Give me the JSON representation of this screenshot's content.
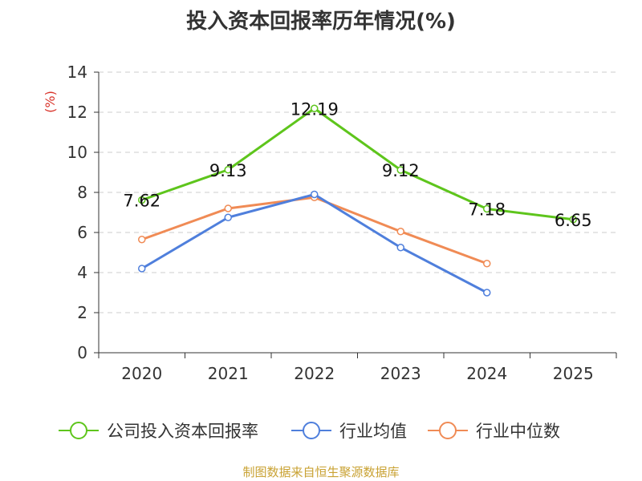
{
  "chart_data": {
    "type": "line",
    "title": "投入资本回报率历年情况(%)",
    "ylabel": "(%)",
    "xlabel": "",
    "categories": [
      "2020",
      "2021",
      "2022",
      "2023",
      "2024",
      "2025"
    ],
    "ylim": [
      0,
      14
    ],
    "yticks": [
      0,
      2,
      4,
      6,
      8,
      10,
      12,
      14
    ],
    "grid": true,
    "legend_position": "bottom",
    "series": [
      {
        "name": "公司投入资本回报率",
        "color": "#5ec51c",
        "values": [
          7.62,
          9.13,
          12.19,
          9.12,
          7.18,
          6.65
        ],
        "labels": [
          "7.62",
          "9.13",
          "12.19",
          "9.12",
          "7.18",
          "6.65"
        ]
      },
      {
        "name": "行业均值",
        "color": "#4f7fdc",
        "values": [
          4.2,
          6.75,
          7.9,
          5.25,
          3.0,
          null
        ]
      },
      {
        "name": "行业中位数",
        "color": "#f08b55",
        "values": [
          5.65,
          7.2,
          7.75,
          6.05,
          4.45,
          null
        ]
      }
    ]
  },
  "source": "制图数据来自恒生聚源数据库"
}
